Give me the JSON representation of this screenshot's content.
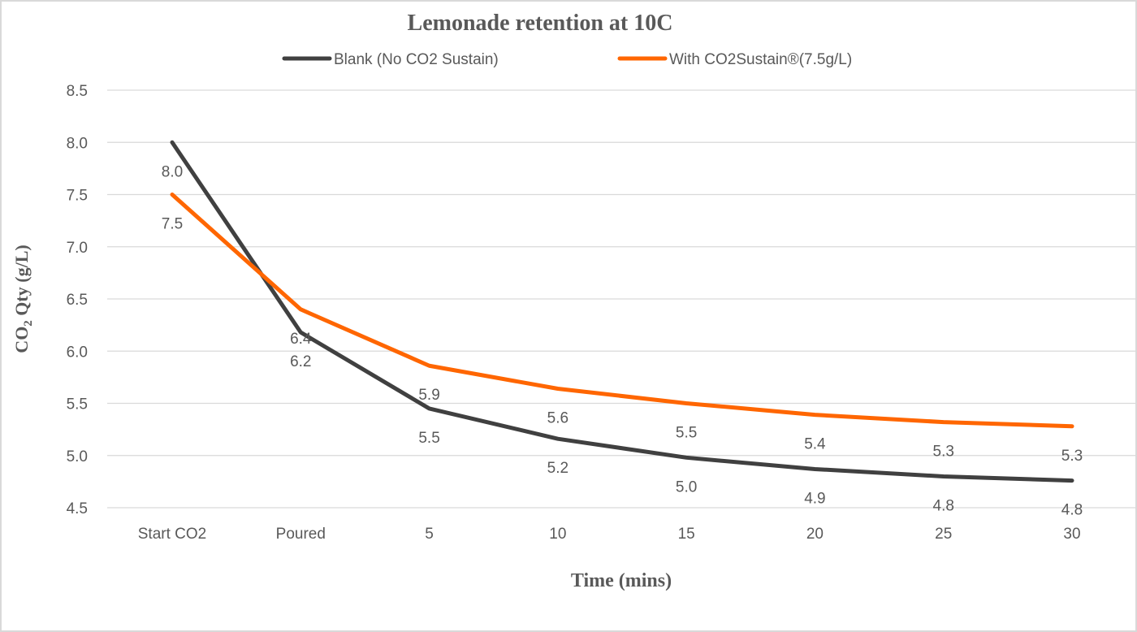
{
  "chart_data": {
    "type": "line",
    "title": "Lemonade retention at 10C",
    "xlabel": "Time (mins)",
    "ylabel_main": "CO",
    "ylabel_sub": "2",
    "ylabel_rest": " Qty (g/L)",
    "categories": [
      "Start CO2",
      "Poured",
      "5",
      "10",
      "15",
      "20",
      "25",
      "30"
    ],
    "ylim": [
      4.5,
      8.5
    ],
    "yticks": [
      "4.5",
      "5.0",
      "5.5",
      "6.0",
      "6.5",
      "7.0",
      "7.5",
      "8.0",
      "8.5"
    ],
    "grid": true,
    "legend_position": "top",
    "series": [
      {
        "name": "Blank (No CO2 Sustain)",
        "color": "#404040",
        "values": [
          8.0,
          6.18,
          5.45,
          5.16,
          4.98,
          4.87,
          4.8,
          4.76
        ],
        "labels": [
          "8.0",
          "6.2",
          "5.5",
          "5.2",
          "5.0",
          "4.9",
          "4.8",
          "4.8"
        ]
      },
      {
        "name": "With CO2Sustain®(7.5g/L)",
        "color": "#ff6600",
        "values": [
          7.5,
          6.4,
          5.86,
          5.64,
          5.5,
          5.39,
          5.32,
          5.28
        ],
        "labels": [
          "7.5",
          "6.4",
          "5.9",
          "5.6",
          "5.5",
          "5.4",
          "5.3",
          "5.3"
        ]
      }
    ]
  }
}
